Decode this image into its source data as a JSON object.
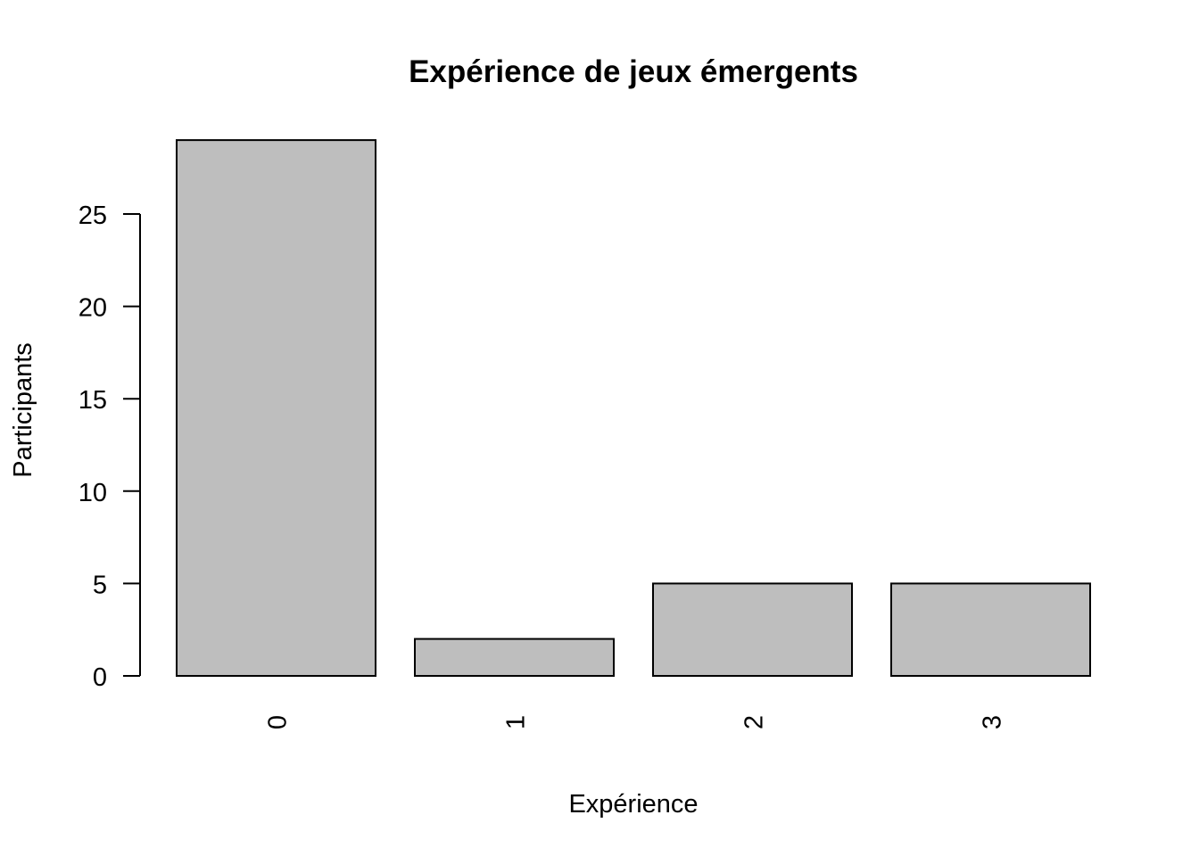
{
  "chart_data": {
    "type": "bar",
    "title": "Expérience de jeux émergents",
    "xlabel": "Expérience",
    "ylabel": "Participants",
    "categories": [
      "0",
      "1",
      "2",
      "3"
    ],
    "values": [
      29,
      2,
      5,
      5
    ],
    "yticks": [
      "0",
      "5",
      "10",
      "15",
      "20",
      "25"
    ],
    "ylim": [
      0,
      29
    ],
    "bar_color": "#bebebe",
    "bar_border_color": "#000000",
    "x_tick_labels_rotated": true,
    "grid": false
  }
}
